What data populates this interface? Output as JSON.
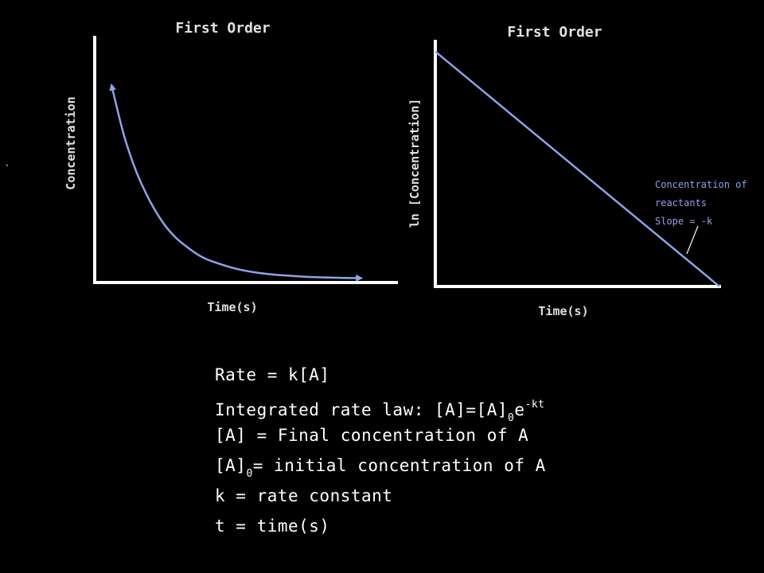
{
  "colors": {
    "background": "#000000",
    "axis": "#ffffff",
    "curve": "#8aa4e6",
    "annotation": "#8aa4e6",
    "text": "#ffffff"
  },
  "stray_mark": "`",
  "chart_data": [
    {
      "type": "line",
      "title": "First Order",
      "xlabel": "Time(s)",
      "ylabel": "Concentration",
      "shape": "exponential-decay",
      "x": [
        0,
        0.5,
        1,
        1.5,
        2,
        2.5,
        3,
        3.5,
        4,
        5,
        6,
        7,
        8,
        9,
        10
      ],
      "y": [
        1.0,
        0.74,
        0.55,
        0.41,
        0.3,
        0.22,
        0.165,
        0.12,
        0.09,
        0.05,
        0.027,
        0.015,
        0.008,
        0.004,
        0.002
      ],
      "xlim": [
        0,
        10.5
      ],
      "ylim": [
        0,
        1.15
      ],
      "arrows_at_ends": true,
      "grid": false
    },
    {
      "type": "line",
      "title": "First Order",
      "xlabel": "Time(s)",
      "ylabel": "ln [Concentration]",
      "shape": "linear",
      "x": [
        0,
        10
      ],
      "y": [
        10,
        0
      ],
      "xlim": [
        0,
        10
      ],
      "ylim": [
        0,
        10.5
      ],
      "grid": false,
      "annotation": [
        "Concentration of",
        "reactants",
        "Slope = -k"
      ]
    }
  ],
  "formulas": {
    "rate": "Rate = k[A]",
    "integrated_prefix": "Integrated rate law: [A]=[A]",
    "integrated_sub": "0",
    "integrated_e": "e",
    "integrated_sup": "-kt",
    "final": "[A] = Final concentration of A",
    "initial_prefix": "[A]",
    "initial_sub": "0",
    "initial_suffix": "= initial concentration of A",
    "k": "k = rate constant",
    "t": "t = time(s)"
  }
}
